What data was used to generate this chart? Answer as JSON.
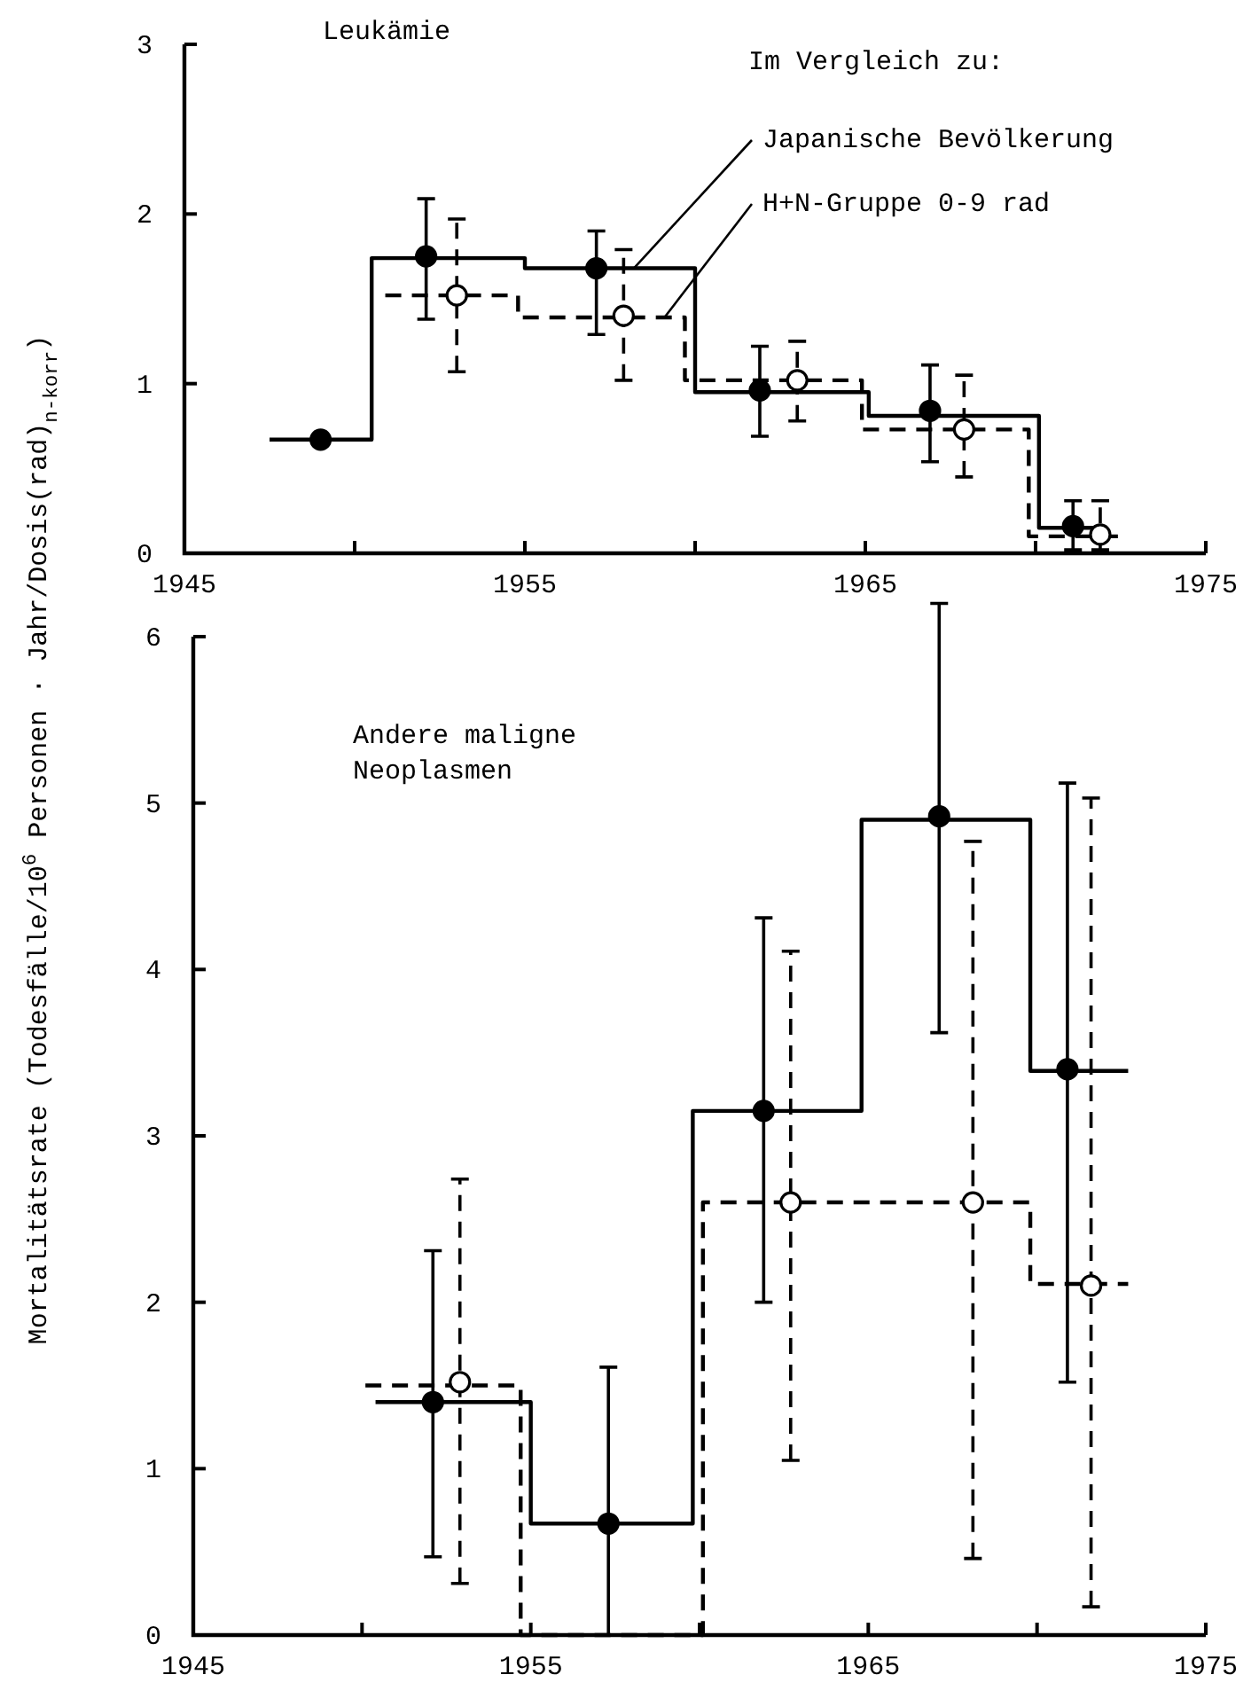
{
  "chart_data": [
    {
      "type": "step",
      "title": "Leukämie",
      "legend_title": "Im Vergleich zu:",
      "legend": "top right",
      "xlim": [
        1945,
        1975
      ],
      "xticks": [
        1945,
        {
          "value": 1950,
          "label": null
        },
        1955,
        {
          "value": 1960,
          "label": null
        },
        1965,
        {
          "value": 1970,
          "label": null
        },
        1975
      ],
      "ylim": [
        0,
        3
      ],
      "yticks": [
        0,
        1,
        2,
        3
      ],
      "series": [
        {
          "name": "Japanische Bevölkerung",
          "color": "#000000",
          "line_style": "solid",
          "x": [
            1947.5,
            1950.5,
            1955.0,
            1960.0,
            1965.1,
            1970.1,
            1972.0
          ],
          "values": [
            0.67,
            1.74,
            1.68,
            0.95,
            0.81,
            0.15,
            0.15
          ]
        },
        {
          "name": "H+N-Gruppe 0-9 rad",
          "color": "#000000",
          "line_style": "dashed",
          "x": [
            1950.9,
            1954.8,
            1959.7,
            1964.9,
            1969.8,
            1972.5
          ],
          "values": [
            1.52,
            1.39,
            1.02,
            0.73,
            0.1,
            0.1
          ]
        },
        {
          "type": "scatter",
          "color": "#000000",
          "marker": "circle",
          "line_style": "solid",
          "x": [
            1949.0,
            1952.1,
            1957.1,
            1961.9,
            1966.9,
            1971.1
          ],
          "values": [
            0.67,
            1.75,
            1.68,
            0.96,
            0.84,
            0.16
          ],
          "errors": [
            null,
            [
              1.38,
              2.09
            ],
            [
              1.29,
              1.9
            ],
            [
              0.69,
              1.22
            ],
            [
              0.54,
              1.11
            ],
            [
              0.02,
              0.31
            ]
          ]
        },
        {
          "type": "scatter",
          "color": "#ffffff",
          "marker": "circle",
          "line_style": "dashed",
          "x": [
            1953.0,
            1957.9,
            1963.0,
            1967.9,
            1971.9
          ],
          "values": [
            1.52,
            1.4,
            1.02,
            0.73,
            0.11
          ],
          "errors": [
            [
              1.07,
              1.97
            ],
            [
              1.02,
              1.79
            ],
            [
              0.78,
              1.25
            ],
            [
              0.45,
              1.05
            ],
            [
              0.02,
              0.31
            ]
          ]
        }
      ]
    },
    {
      "type": "step",
      "title": "Andere maligne Neoplasmen",
      "ylabel": "Mortalitätsrate (Todesfälle/10$^{6}$ Personen · Jahr/Dosis(rad)$_{n-korr}$)",
      "xlim": [
        1945,
        1975
      ],
      "xticks": [
        1945,
        {
          "value": 1950,
          "label": null
        },
        1955,
        {
          "value": 1960,
          "label": null
        },
        1965,
        {
          "value": 1970,
          "label": null
        },
        1975
      ],
      "ylim": [
        0,
        6
      ],
      "yticks": [
        0,
        1,
        2,
        3,
        4,
        5,
        6
      ],
      "series": [
        {
          "color": "#000000",
          "line_style": "solid",
          "x": [
            1950.4,
            1955.0,
            1959.8,
            1964.8,
            1969.8,
            1972.7
          ],
          "values": [
            1.4,
            0.67,
            3.15,
            4.9,
            3.39,
            3.39
          ]
        },
        {
          "color": "#000000",
          "line_style": "dashed",
          "x": [
            1950.1,
            1954.7,
            1960.1,
            1969.8,
            1972.7
          ],
          "values": [
            1.5,
            0,
            2.6,
            2.11,
            2.11
          ]
        },
        {
          "type": "scatter",
          "color": "#000000",
          "marker": "circle",
          "line_style": "solid",
          "x": [
            1952.1,
            1957.3,
            1961.9,
            1967.1,
            1970.9
          ],
          "values": [
            1.4,
            0.67,
            3.15,
            4.92,
            3.4
          ],
          "errors": [
            [
              0.47,
              2.31
            ],
            [
              0,
              1.61
            ],
            [
              2.0,
              4.31
            ],
            [
              3.62,
              6.2
            ],
            [
              1.52,
              5.12
            ]
          ]
        },
        {
          "type": "scatter",
          "color": "#ffffff",
          "marker": "circle",
          "line_style": "dashed",
          "x": [
            1952.9,
            1962.7,
            1968.1,
            1971.6
          ],
          "values": [
            1.52,
            2.6,
            2.6,
            2.1
          ],
          "errors": [
            [
              0.31,
              2.74
            ],
            [
              1.05,
              4.11
            ],
            [
              0.46,
              4.77
            ],
            [
              0.17,
              5.03
            ]
          ]
        }
      ]
    }
  ]
}
